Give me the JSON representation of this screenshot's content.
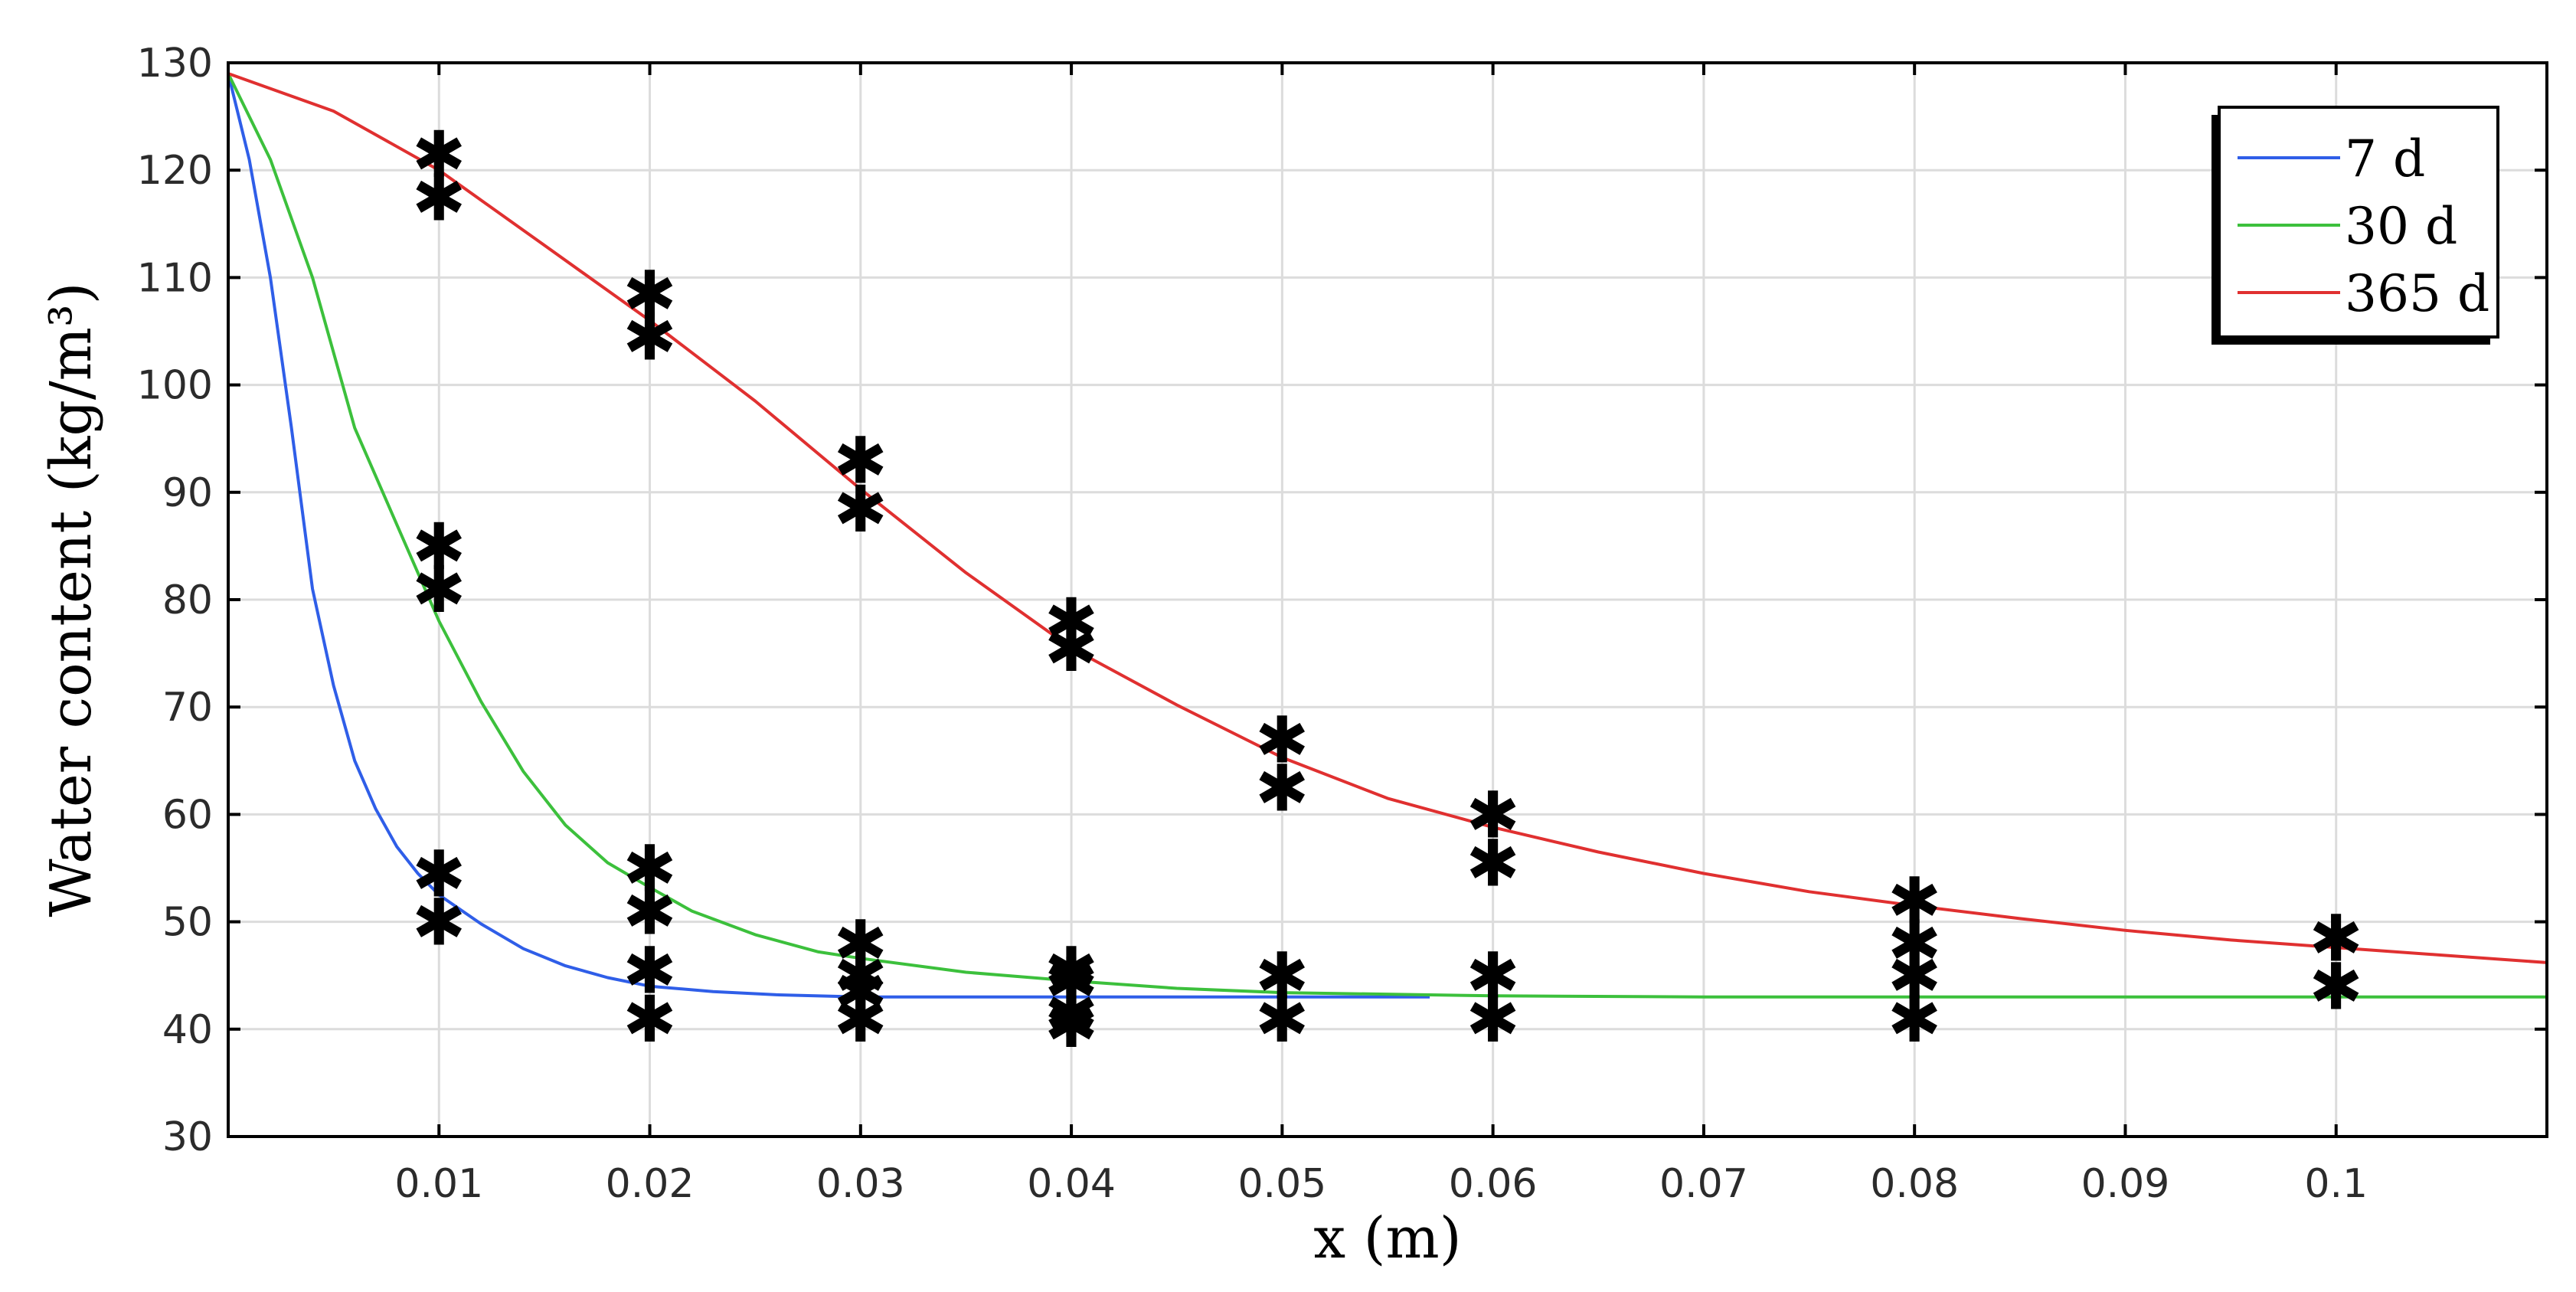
{
  "chart_data": {
    "type": "line",
    "title": "",
    "xlabel": "x (m)",
    "ylabel": "Water content (kg/m³)",
    "xlim": [
      0,
      0.11
    ],
    "ylim": [
      30,
      130
    ],
    "grid": true,
    "legend_position": "top-right",
    "x_ticks": [
      {
        "value": 0.01,
        "label": "0.01"
      },
      {
        "value": 0.02,
        "label": "0.02"
      },
      {
        "value": 0.03,
        "label": "0.03"
      },
      {
        "value": 0.04,
        "label": "0.04"
      },
      {
        "value": 0.05,
        "label": "0.05"
      },
      {
        "value": 0.06,
        "label": "0.06"
      },
      {
        "value": 0.07,
        "label": "0.07"
      },
      {
        "value": 0.08,
        "label": "0.08"
      },
      {
        "value": 0.09,
        "label": "0.09"
      },
      {
        "value": 0.1,
        "label": "0.1"
      }
    ],
    "y_ticks": [
      {
        "value": 30,
        "label": "30"
      },
      {
        "value": 40,
        "label": "40"
      },
      {
        "value": 50,
        "label": "50"
      },
      {
        "value": 60,
        "label": "60"
      },
      {
        "value": 70,
        "label": "70"
      },
      {
        "value": 80,
        "label": "80"
      },
      {
        "value": 90,
        "label": "90"
      },
      {
        "value": 100,
        "label": "100"
      },
      {
        "value": 110,
        "label": "110"
      },
      {
        "value": 120,
        "label": "120"
      },
      {
        "value": 130,
        "label": "130"
      }
    ],
    "series": [
      {
        "name": "7 d",
        "color": "#2f5ee8",
        "x": [
          0,
          0.001,
          0.002,
          0.003,
          0.004,
          0.005,
          0.006,
          0.007,
          0.008,
          0.009,
          0.01,
          0.012,
          0.014,
          0.016,
          0.018,
          0.02,
          0.023,
          0.026,
          0.03,
          0.035,
          0.04,
          0.045,
          0.05,
          0.057
        ],
        "y": [
          129,
          121,
          110,
          96,
          81,
          72,
          65,
          60.5,
          57,
          54.5,
          52.5,
          49.8,
          47.5,
          45.9,
          44.8,
          44.0,
          43.5,
          43.2,
          43.0,
          43.0,
          43.0,
          43.0,
          43.0,
          43.0
        ]
      },
      {
        "name": "30 d",
        "color": "#3cc03c",
        "x": [
          0,
          0.002,
          0.004,
          0.006,
          0.008,
          0.01,
          0.012,
          0.014,
          0.016,
          0.018,
          0.02,
          0.022,
          0.025,
          0.028,
          0.03,
          0.035,
          0.04,
          0.045,
          0.05,
          0.06,
          0.07,
          0.08,
          0.09,
          0.1,
          0.11
        ],
        "y": [
          129,
          121,
          110,
          96,
          87,
          78,
          70.5,
          64,
          59,
          55.5,
          53.2,
          51.0,
          48.8,
          47.2,
          46.6,
          45.3,
          44.5,
          43.8,
          43.4,
          43.1,
          43.0,
          43.0,
          43.0,
          43.0,
          43.0
        ]
      },
      {
        "name": "365 d",
        "color": "#e03030",
        "x": [
          0,
          0.005,
          0.01,
          0.015,
          0.02,
          0.025,
          0.03,
          0.035,
          0.04,
          0.045,
          0.05,
          0.055,
          0.06,
          0.065,
          0.07,
          0.075,
          0.08,
          0.085,
          0.09,
          0.095,
          0.1,
          0.105,
          0.11
        ],
        "y": [
          129,
          125.5,
          120,
          113,
          106,
          98.5,
          90.3,
          82.5,
          75.5,
          70.2,
          65.3,
          61.5,
          58.8,
          56.5,
          54.5,
          52.8,
          51.5,
          50.3,
          49.2,
          48.3,
          47.6,
          46.9,
          46.2
        ]
      }
    ],
    "measurements": {
      "marker": "✱",
      "points": [
        {
          "x": 0.01,
          "y": 121.5
        },
        {
          "x": 0.01,
          "y": 117.5
        },
        {
          "x": 0.01,
          "y": 85
        },
        {
          "x": 0.01,
          "y": 81
        },
        {
          "x": 0.01,
          "y": 54.5
        },
        {
          "x": 0.01,
          "y": 50
        },
        {
          "x": 0.02,
          "y": 108.5
        },
        {
          "x": 0.02,
          "y": 104.5
        },
        {
          "x": 0.02,
          "y": 55
        },
        {
          "x": 0.02,
          "y": 51
        },
        {
          "x": 0.02,
          "y": 45.5
        },
        {
          "x": 0.02,
          "y": 41
        },
        {
          "x": 0.03,
          "y": 93
        },
        {
          "x": 0.03,
          "y": 88.5
        },
        {
          "x": 0.03,
          "y": 48
        },
        {
          "x": 0.03,
          "y": 45
        },
        {
          "x": 0.03,
          "y": 43.5
        },
        {
          "x": 0.03,
          "y": 41
        },
        {
          "x": 0.04,
          "y": 78
        },
        {
          "x": 0.04,
          "y": 75.5
        },
        {
          "x": 0.04,
          "y": 45.5
        },
        {
          "x": 0.04,
          "y": 44.5
        },
        {
          "x": 0.04,
          "y": 41.5
        },
        {
          "x": 0.04,
          "y": 40.5
        },
        {
          "x": 0.05,
          "y": 67
        },
        {
          "x": 0.05,
          "y": 62.5
        },
        {
          "x": 0.05,
          "y": 45
        },
        {
          "x": 0.05,
          "y": 41
        },
        {
          "x": 0.06,
          "y": 60
        },
        {
          "x": 0.06,
          "y": 55.5
        },
        {
          "x": 0.06,
          "y": 45
        },
        {
          "x": 0.06,
          "y": 41
        },
        {
          "x": 0.08,
          "y": 52
        },
        {
          "x": 0.08,
          "y": 48
        },
        {
          "x": 0.08,
          "y": 45
        },
        {
          "x": 0.08,
          "y": 41
        },
        {
          "x": 0.1,
          "y": 48.5
        },
        {
          "x": 0.1,
          "y": 44
        }
      ]
    }
  }
}
